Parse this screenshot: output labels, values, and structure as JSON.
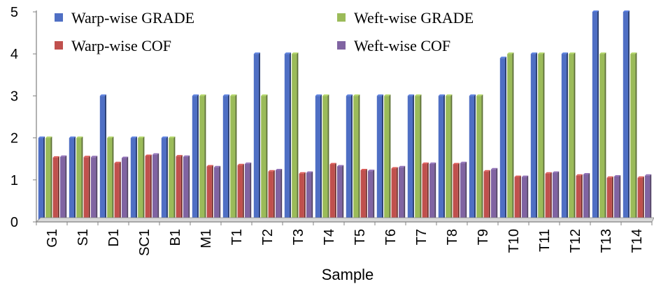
{
  "chart_data": {
    "type": "bar",
    "xlabel": "Sample",
    "ylabel": "",
    "ylim": [
      0,
      5
    ],
    "yticks": [
      0,
      1,
      2,
      3,
      4,
      5
    ],
    "grid": false,
    "legend_position": "top",
    "categories": [
      "G1",
      "S1",
      "D1",
      "SC1",
      "B1",
      "M1",
      "T1",
      "T2",
      "T3",
      "T4",
      "T5",
      "T6",
      "T7",
      "T8",
      "T9",
      "T10",
      "T11",
      "T12",
      "T13",
      "T14"
    ],
    "series": [
      {
        "name": "Warp-wise GRADE",
        "color": "#4f6fc4",
        "values": [
          2,
          2,
          3,
          2,
          2,
          3,
          3,
          4,
          4,
          3,
          3,
          3,
          3,
          3,
          3,
          3.9,
          4,
          4,
          5,
          5
        ]
      },
      {
        "name": "Weft-wise GRADE",
        "color": "#9bbb59",
        "values": [
          2,
          2,
          2,
          2,
          2,
          3,
          3,
          3,
          4,
          3,
          3,
          3,
          3,
          3,
          3,
          4,
          4,
          4,
          4,
          4
        ]
      },
      {
        "name": "Warp-wise COF",
        "color": "#c0504d",
        "values": [
          1.53,
          1.54,
          1.4,
          1.57,
          1.56,
          1.32,
          1.35,
          1.2,
          1.15,
          1.37,
          1.23,
          1.27,
          1.38,
          1.37,
          1.2,
          1.07,
          1.15,
          1.1,
          1.05,
          1.05
        ]
      },
      {
        "name": "Weft-wise COF",
        "color": "#8064a2",
        "values": [
          1.55,
          1.54,
          1.52,
          1.6,
          1.55,
          1.3,
          1.38,
          1.23,
          1.17,
          1.32,
          1.21,
          1.3,
          1.38,
          1.4,
          1.25,
          1.07,
          1.17,
          1.13,
          1.08,
          1.1
        ]
      }
    ]
  }
}
